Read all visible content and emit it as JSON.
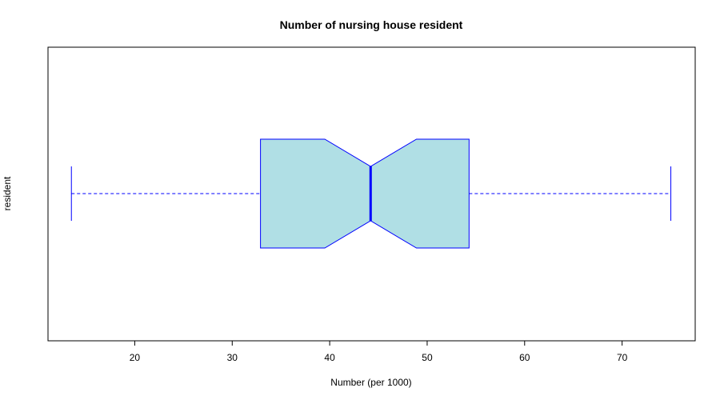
{
  "chart_data": {
    "type": "boxplot",
    "orientation": "horizontal",
    "notched": true,
    "title": "Number of nursing house resident",
    "xlabel": "Number (per 1000)",
    "ylabel": "resident",
    "xlim": [
      11.1,
      77.5
    ],
    "x_ticks": [
      20,
      30,
      40,
      50,
      60,
      70
    ],
    "x_tick_labels": [
      "20",
      "30",
      "40",
      "50",
      "60",
      "70"
    ],
    "box": {
      "whisker_low": 13.5,
      "q1": 32.9,
      "median": 44.2,
      "q3": 54.3,
      "whisker_high": 75.0,
      "notch_low": 39.5,
      "notch_high": 48.9
    },
    "colors": {
      "fill": "#b0dfe5",
      "stroke": "#0000ff"
    }
  }
}
